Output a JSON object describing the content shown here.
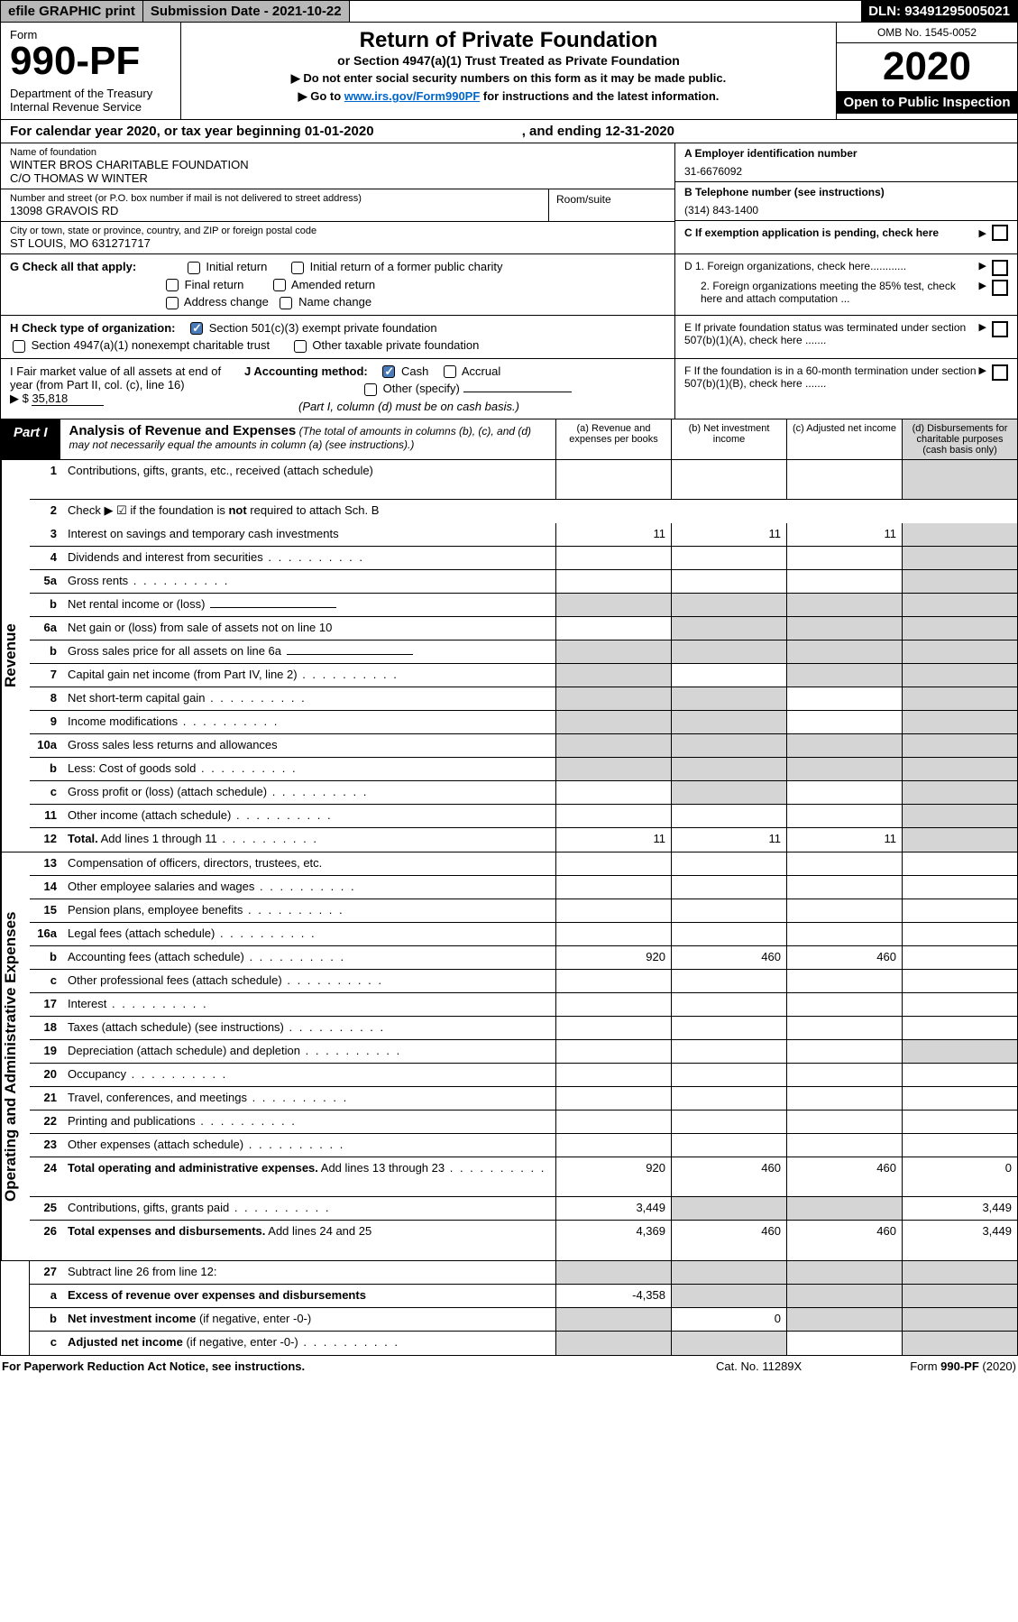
{
  "topbar": {
    "efile": "efile GRAPHIC print",
    "subdate_label": "Submission Date - ",
    "subdate": "2021-10-22",
    "dln_label": "DLN: ",
    "dln": "93491295005021"
  },
  "header": {
    "form_label": "Form",
    "form_no": "990-PF",
    "dept": "Department of the Treasury\nInternal Revenue Service",
    "title": "Return of Private Foundation",
    "subtitle": "or Section 4947(a)(1) Trust Treated as Private Foundation",
    "note1": "▶ Do not enter social security numbers on this form as it may be made public.",
    "note2_pre": "▶ Go to ",
    "note2_link": "www.irs.gov/Form990PF",
    "note2_post": " for instructions and the latest information.",
    "omb": "OMB No. 1545-0052",
    "year": "2020",
    "open": "Open to Public Inspection"
  },
  "calyear": {
    "text_pre": "For calendar year 2020, or tax year beginning ",
    "begin": "01-01-2020",
    "text_mid": " , and ending ",
    "end": "12-31-2020"
  },
  "info": {
    "name_label": "Name of foundation",
    "name1": "WINTER BROS CHARITABLE FOUNDATION",
    "name2": "C/O THOMAS W WINTER",
    "addr_label": "Number and street (or P.O. box number if mail is not delivered to street address)",
    "addr": "13098 GRAVOIS RD",
    "room_label": "Room/suite",
    "city_label": "City or town, state or province, country, and ZIP or foreign postal code",
    "city": "ST LOUIS, MO  631271717",
    "a_label": "A Employer identification number",
    "a_val": "31-6676092",
    "b_label": "B Telephone number (see instructions)",
    "b_val": "(314) 843-1400",
    "c_label": "C If exemption application is pending, check here"
  },
  "checks": {
    "g_label": "G Check all that apply:",
    "g_opts": [
      "Initial return",
      "Initial return of a former public charity",
      "Final return",
      "Amended return",
      "Address change",
      "Name change"
    ],
    "h_label": "H Check type of organization:",
    "h1": "Section 501(c)(3) exempt private foundation",
    "h2": "Section 4947(a)(1) nonexempt charitable trust",
    "h3": "Other taxable private foundation",
    "i_label": "I Fair market value of all assets at end of year (from Part II, col. (c), line 16)",
    "i_val": "35,818",
    "j_label": "J Accounting method:",
    "j_opts": [
      "Cash",
      "Accrual",
      "Other (specify)"
    ],
    "j_note": "(Part I, column (d) must be on cash basis.)",
    "d1": "D 1. Foreign organizations, check here............",
    "d2": "2. Foreign organizations meeting the 85% test, check here and attach computation ...",
    "e": "E  If private foundation status was terminated under section 507(b)(1)(A), check here .......",
    "f": "F  If the foundation is in a 60-month termination under section 507(b)(1)(B), check here .......",
    "arrow_prefix": "▶ $ "
  },
  "part1": {
    "label": "Part I",
    "title": "Analysis of Revenue and Expenses",
    "note": "(The total of amounts in columns (b), (c), and (d) may not necessarily equal the amounts in column (a) (see instructions).)",
    "cols": {
      "a": "(a)  Revenue and expenses per books",
      "b": "(b)  Net investment income",
      "c": "(c)  Adjusted net income",
      "d": "(d)  Disbursements for charitable purposes (cash basis only)"
    }
  },
  "sections": {
    "revenue": "Revenue",
    "opex": "Operating and Administrative Expenses"
  },
  "rows": [
    {
      "n": "1",
      "label": "Contributions, gifts, grants, etc., received (attach schedule)",
      "a": "",
      "b": "",
      "c": "",
      "d": "",
      "shade": [
        "d"
      ],
      "tall": true
    },
    {
      "n": "2",
      "label": "Check ▶ ☑ if the foundation is <b>not</b> required to attach Sch. B",
      "noborder": true,
      "novals": true
    },
    {
      "n": "3",
      "label": "Interest on savings and temporary cash investments",
      "a": "11",
      "b": "11",
      "c": "11",
      "shade": [
        "d"
      ]
    },
    {
      "n": "4",
      "label": "Dividends and interest from securities",
      "dots": true,
      "shade": [
        "d"
      ]
    },
    {
      "n": "5a",
      "label": "Gross rents",
      "dots": true,
      "shade": [
        "d"
      ]
    },
    {
      "n": "b",
      "label": "Net rental income or (loss)",
      "shade": [
        "a",
        "b",
        "c",
        "d"
      ],
      "underline": true
    },
    {
      "n": "6a",
      "label": "Net gain or (loss) from sale of assets not on line 10",
      "shade": [
        "b",
        "c",
        "d"
      ]
    },
    {
      "n": "b",
      "label": "Gross sales price for all assets on line 6a",
      "shade": [
        "a",
        "b",
        "c",
        "d"
      ],
      "underline": true
    },
    {
      "n": "7",
      "label": "Capital gain net income (from Part IV, line 2)",
      "dots": true,
      "shade": [
        "a",
        "c",
        "d"
      ]
    },
    {
      "n": "8",
      "label": "Net short-term capital gain",
      "dots": true,
      "shade": [
        "a",
        "b",
        "d"
      ]
    },
    {
      "n": "9",
      "label": "Income modifications",
      "dots": true,
      "shade": [
        "a",
        "b",
        "d"
      ]
    },
    {
      "n": "10a",
      "label": "Gross sales less returns and allowances",
      "shade": [
        "a",
        "b",
        "c",
        "d"
      ],
      "boxed": true
    },
    {
      "n": "b",
      "label": "Less: Cost of goods sold",
      "dots": true,
      "shade": [
        "a",
        "b",
        "c",
        "d"
      ],
      "boxed": true
    },
    {
      "n": "c",
      "label": "Gross profit or (loss) (attach schedule)",
      "dots": true,
      "shade": [
        "b",
        "d"
      ]
    },
    {
      "n": "11",
      "label": "Other income (attach schedule)",
      "dots": true,
      "shade": [
        "d"
      ]
    },
    {
      "n": "12",
      "label": "<b>Total.</b> Add lines 1 through 11",
      "dots": true,
      "a": "11",
      "b": "11",
      "c": "11",
      "shade": [
        "d"
      ]
    }
  ],
  "oprows": [
    {
      "n": "13",
      "label": "Compensation of officers, directors, trustees, etc."
    },
    {
      "n": "14",
      "label": "Other employee salaries and wages",
      "dots": true
    },
    {
      "n": "15",
      "label": "Pension plans, employee benefits",
      "dots": true
    },
    {
      "n": "16a",
      "label": "Legal fees (attach schedule)",
      "dots": true
    },
    {
      "n": "b",
      "label": "Accounting fees (attach schedule)",
      "dots": true,
      "a": "920",
      "b": "460",
      "c": "460"
    },
    {
      "n": "c",
      "label": "Other professional fees (attach schedule)",
      "dots": true
    },
    {
      "n": "17",
      "label": "Interest",
      "dots": true
    },
    {
      "n": "18",
      "label": "Taxes (attach schedule) (see instructions)",
      "dots": true
    },
    {
      "n": "19",
      "label": "Depreciation (attach schedule) and depletion",
      "dots": true,
      "shade": [
        "d"
      ]
    },
    {
      "n": "20",
      "label": "Occupancy",
      "dots": true
    },
    {
      "n": "21",
      "label": "Travel, conferences, and meetings",
      "dots": true
    },
    {
      "n": "22",
      "label": "Printing and publications",
      "dots": true
    },
    {
      "n": "23",
      "label": "Other expenses (attach schedule)",
      "dots": true
    },
    {
      "n": "24",
      "label": "<b>Total operating and administrative expenses.</b> Add lines 13 through 23",
      "dots": true,
      "a": "920",
      "b": "460",
      "c": "460",
      "d": "0",
      "tall": true
    },
    {
      "n": "25",
      "label": "Contributions, gifts, grants paid",
      "dots": true,
      "a": "3,449",
      "shade": [
        "b",
        "c"
      ],
      "d": "3,449"
    },
    {
      "n": "26",
      "label": "<b>Total expenses and disbursements.</b> Add lines 24 and 25",
      "a": "4,369",
      "b": "460",
      "c": "460",
      "d": "3,449",
      "tall": true
    }
  ],
  "bottomrows": [
    {
      "n": "27",
      "label": "Subtract line 26 from line 12:",
      "shade": [
        "a",
        "b",
        "c",
        "d"
      ]
    },
    {
      "n": "a",
      "label": "<b>Excess of revenue over expenses and disbursements</b>",
      "a": "-4,358",
      "shade": [
        "b",
        "c",
        "d"
      ]
    },
    {
      "n": "b",
      "label": "<b>Net investment income</b> (if negative, enter -0-)",
      "shade": [
        "a",
        "c",
        "d"
      ],
      "b": "0"
    },
    {
      "n": "c",
      "label": "<b>Adjusted net income</b> (if negative, enter -0-)",
      "dots": true,
      "shade": [
        "a",
        "b",
        "d"
      ]
    }
  ],
  "footer": {
    "left": "For Paperwork Reduction Act Notice, see instructions.",
    "mid": "Cat. No. 11289X",
    "right": "Form 990-PF (2020)"
  },
  "colors": {
    "shade": "#d5d5d5",
    "link": "#0066cc",
    "checkbg": "#4a7ab8"
  }
}
